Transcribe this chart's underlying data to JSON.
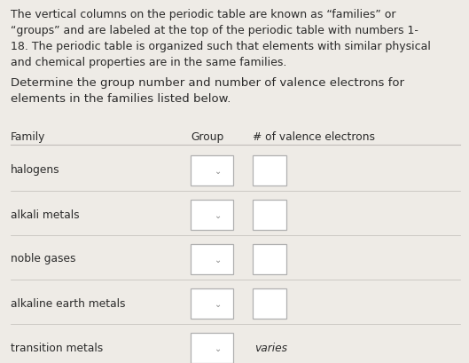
{
  "bg_color": "#eeebe6",
  "paragraph1": "The vertical columns on the periodic table are known as “families” or\n“groups” and are labeled at the top of the periodic table with numbers 1-\n18. The periodic table is organized such that elements with similar physical\nand chemical properties are in the same families.",
  "paragraph2": "Determine the group number and number of valence electrons for\nelements in the families listed below.",
  "col_header_family": "Family",
  "col_header_group": "Group",
  "col_header_valence": "# of valence electrons",
  "families": [
    "halogens",
    "alkali metals",
    "noble gases",
    "alkaline earth metals",
    "transition metals"
  ],
  "box_color": "#ffffff",
  "box_edge_color": "#b0b0b0",
  "line_color": "#c0bcb8",
  "text_color": "#2a2a2a",
  "varies_text": "varies",
  "p1_fontsize": 9.0,
  "p2_fontsize": 9.5,
  "header_fontsize": 8.8,
  "family_fontsize": 8.8,
  "varies_fontsize": 8.8,
  "fig_w": 5.29,
  "fig_h": 4.1,
  "dpi": 100
}
